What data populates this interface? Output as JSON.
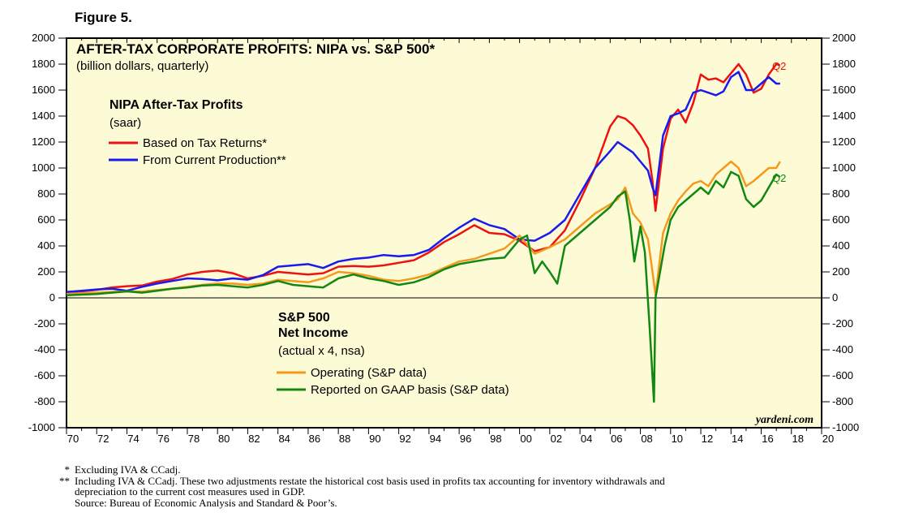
{
  "figure_label": "Figure 5.",
  "chart_data": {
    "type": "line",
    "title": "AFTER-TAX CORPORATE PROFITS: NIPA vs. S&P 500*",
    "subtitle": "(billion dollars, quarterly)",
    "ylim": [
      -1000,
      2000
    ],
    "y_ticks": [
      "2000",
      "1800",
      "1600",
      "1400",
      "1200",
      "1000",
      "800",
      "600",
      "400",
      "200",
      "0",
      "-200",
      "-400",
      "-600",
      "-800",
      "-1000"
    ],
    "y_tick_values": [
      2000,
      1800,
      1600,
      1400,
      1200,
      1000,
      800,
      600,
      400,
      200,
      0,
      -200,
      -400,
      -600,
      -800,
      -1000
    ],
    "xlim": [
      1970,
      2020
    ],
    "x_ticks": [
      "70",
      "72",
      "74",
      "76",
      "78",
      "80",
      "82",
      "84",
      "86",
      "88",
      "90",
      "92",
      "94",
      "96",
      "98",
      "00",
      "02",
      "04",
      "06",
      "08",
      "10",
      "12",
      "14",
      "16",
      "18",
      "20"
    ],
    "x_tick_values": [
      1970,
      1972,
      1974,
      1976,
      1978,
      1980,
      1982,
      1984,
      1986,
      1988,
      1990,
      1992,
      1994,
      1996,
      1998,
      2000,
      2002,
      2004,
      2006,
      2008,
      2010,
      2012,
      2014,
      2016,
      2018,
      2020
    ],
    "grid": false,
    "background": "#fdfbd6",
    "legend_groups": [
      {
        "title": "NIPA After-Tax Profits",
        "subtitle": "(saar)",
        "entries": [
          "Based on Tax Returns*",
          "From Current Production**"
        ]
      },
      {
        "title_line1": "S&P 500",
        "title_line2": "Net Income",
        "subtitle": "(actual x 4, nsa)",
        "entries": [
          "Operating (S&P data)",
          "Reported on GAAP basis (S&P data)"
        ]
      }
    ],
    "annotations": [
      "Q2",
      "Q2"
    ],
    "watermark": "yardeni.com",
    "series": [
      {
        "name": "Based on Tax Returns*",
        "color": "#ee1111",
        "x": [
          1970,
          1971,
          1972,
          1973,
          1974,
          1975,
          1976,
          1977,
          1978,
          1979,
          1980,
          1981,
          1982,
          1983,
          1984,
          1985,
          1986,
          1987,
          1988,
          1989,
          1990,
          1991,
          1992,
          1993,
          1994,
          1995,
          1996,
          1997,
          1998,
          1999,
          2000,
          2001,
          2002,
          2003,
          2004,
          2005,
          2006,
          2006.5,
          2007,
          2007.5,
          2008,
          2008.5,
          2008.8,
          2009,
          2009.5,
          2010,
          2010.5,
          2011,
          2011.5,
          2012,
          2012.5,
          2013,
          2013.5,
          2014,
          2014.5,
          2015,
          2015.5,
          2016,
          2016.5,
          2017,
          2017.25
        ],
        "y": [
          45,
          50,
          62,
          80,
          90,
          95,
          125,
          145,
          180,
          200,
          210,
          190,
          150,
          170,
          200,
          190,
          180,
          190,
          240,
          245,
          240,
          250,
          270,
          290,
          350,
          430,
          490,
          560,
          500,
          490,
          440,
          360,
          390,
          520,
          750,
          1000,
          1320,
          1400,
          1380,
          1330,
          1250,
          1150,
          900,
          670,
          1150,
          1380,
          1450,
          1350,
          1500,
          1720,
          1680,
          1690,
          1660,
          1730,
          1800,
          1720,
          1580,
          1610,
          1720,
          1800,
          1790
        ]
      },
      {
        "name": "From Current Production**",
        "color": "#1a1aee",
        "x": [
          1970,
          1971,
          1972,
          1973,
          1974,
          1975,
          1976,
          1977,
          1978,
          1979,
          1980,
          1981,
          1982,
          1983,
          1984,
          1985,
          1986,
          1987,
          1988,
          1989,
          1990,
          1991,
          1992,
          1993,
          1994,
          1995,
          1996,
          1997,
          1998,
          1999,
          2000,
          2001,
          2002,
          2003,
          2004,
          2005,
          2006,
          2006.5,
          2007,
          2007.5,
          2008,
          2008.5,
          2008.8,
          2009,
          2009.5,
          2010,
          2010.5,
          2011,
          2011.5,
          2012,
          2012.5,
          2013,
          2013.5,
          2014,
          2014.5,
          2015,
          2015.5,
          2016,
          2016.5,
          2017,
          2017.25
        ],
        "y": [
          45,
          55,
          65,
          70,
          55,
          85,
          110,
          130,
          150,
          145,
          135,
          150,
          140,
          175,
          240,
          250,
          260,
          230,
          280,
          300,
          310,
          330,
          320,
          330,
          370,
          460,
          540,
          610,
          560,
          530,
          450,
          440,
          500,
          600,
          800,
          1000,
          1130,
          1200,
          1160,
          1120,
          1050,
          980,
          850,
          790,
          1250,
          1400,
          1420,
          1450,
          1580,
          1600,
          1580,
          1560,
          1590,
          1700,
          1740,
          1600,
          1600,
          1650,
          1700,
          1650,
          1650
        ]
      },
      {
        "name": "Operating (S&P data)",
        "color": "#f39a1e",
        "x": [
          1970,
          1971,
          1972,
          1973,
          1974,
          1975,
          1976,
          1977,
          1978,
          1979,
          1980,
          1981,
          1982,
          1983,
          1984,
          1985,
          1986,
          1987,
          1988,
          1989,
          1990,
          1991,
          1992,
          1993,
          1994,
          1995,
          1996,
          1997,
          1998,
          1999,
          2000,
          2001,
          2002,
          2003,
          2004,
          2005,
          2006,
          2006.5,
          2007,
          2007.5,
          2008,
          2008.5,
          2008.8,
          2009,
          2009.5,
          2010,
          2010.5,
          2011,
          2011.5,
          2012,
          2012.5,
          2013,
          2013.5,
          2014,
          2014.5,
          2015,
          2015.5,
          2016,
          2016.5,
          2017,
          2017.25
        ],
        "y": [
          30,
          35,
          40,
          45,
          50,
          48,
          60,
          70,
          85,
          100,
          110,
          110,
          100,
          110,
          140,
          130,
          120,
          150,
          200,
          190,
          170,
          140,
          130,
          150,
          180,
          230,
          280,
          300,
          340,
          380,
          480,
          340,
          390,
          450,
          550,
          650,
          720,
          760,
          850,
          650,
          580,
          450,
          200,
          20,
          500,
          650,
          750,
          820,
          880,
          900,
          860,
          950,
          1000,
          1050,
          1000,
          860,
          900,
          950,
          1000,
          1000,
          1050
        ]
      },
      {
        "name": "Reported on GAAP basis (S&P data)",
        "color": "#128812",
        "x": [
          1970,
          1971,
          1972,
          1973,
          1974,
          1975,
          1976,
          1977,
          1978,
          1979,
          1980,
          1981,
          1982,
          1983,
          1984,
          1985,
          1986,
          1987,
          1988,
          1989,
          1990,
          1991,
          1992,
          1993,
          1994,
          1995,
          1996,
          1997,
          1998,
          1999,
          2000,
          2000.5,
          2001,
          2001.5,
          2002,
          2002.5,
          2003,
          2004,
          2005,
          2006,
          2006.5,
          2007,
          2007.3,
          2007.6,
          2008,
          2008.3,
          2008.6,
          2008.9,
          2009,
          2009.3,
          2009.6,
          2010,
          2010.5,
          2011,
          2011.5,
          2012,
          2012.5,
          2013,
          2013.5,
          2014,
          2014.5,
          2015,
          2015.5,
          2016,
          2016.5,
          2017,
          2017.25
        ],
        "y": [
          20,
          25,
          30,
          40,
          50,
          40,
          55,
          70,
          80,
          95,
          100,
          90,
          80,
          100,
          130,
          100,
          90,
          80,
          150,
          180,
          150,
          130,
          100,
          120,
          160,
          220,
          260,
          280,
          300,
          310,
          450,
          480,
          190,
          280,
          200,
          110,
          400,
          500,
          600,
          700,
          780,
          820,
          600,
          280,
          550,
          350,
          -200,
          -800,
          0,
          200,
          400,
          600,
          700,
          750,
          800,
          850,
          800,
          900,
          850,
          970,
          940,
          760,
          700,
          750,
          850,
          950,
          930
        ]
      }
    ]
  },
  "footnotes": [
    {
      "mark": "*",
      "text": "Excluding IVA & CCadj."
    },
    {
      "mark": "**",
      "text": "Including IVA & CCadj. These two adjustments restate the historical cost basis used in profits tax accounting for inventory withdrawals and"
    },
    {
      "mark": "",
      "text": "depreciation to the current cost measures used in GDP."
    },
    {
      "mark": "",
      "text": "Source: Bureau of Economic Analysis and Standard & Poor’s."
    }
  ]
}
